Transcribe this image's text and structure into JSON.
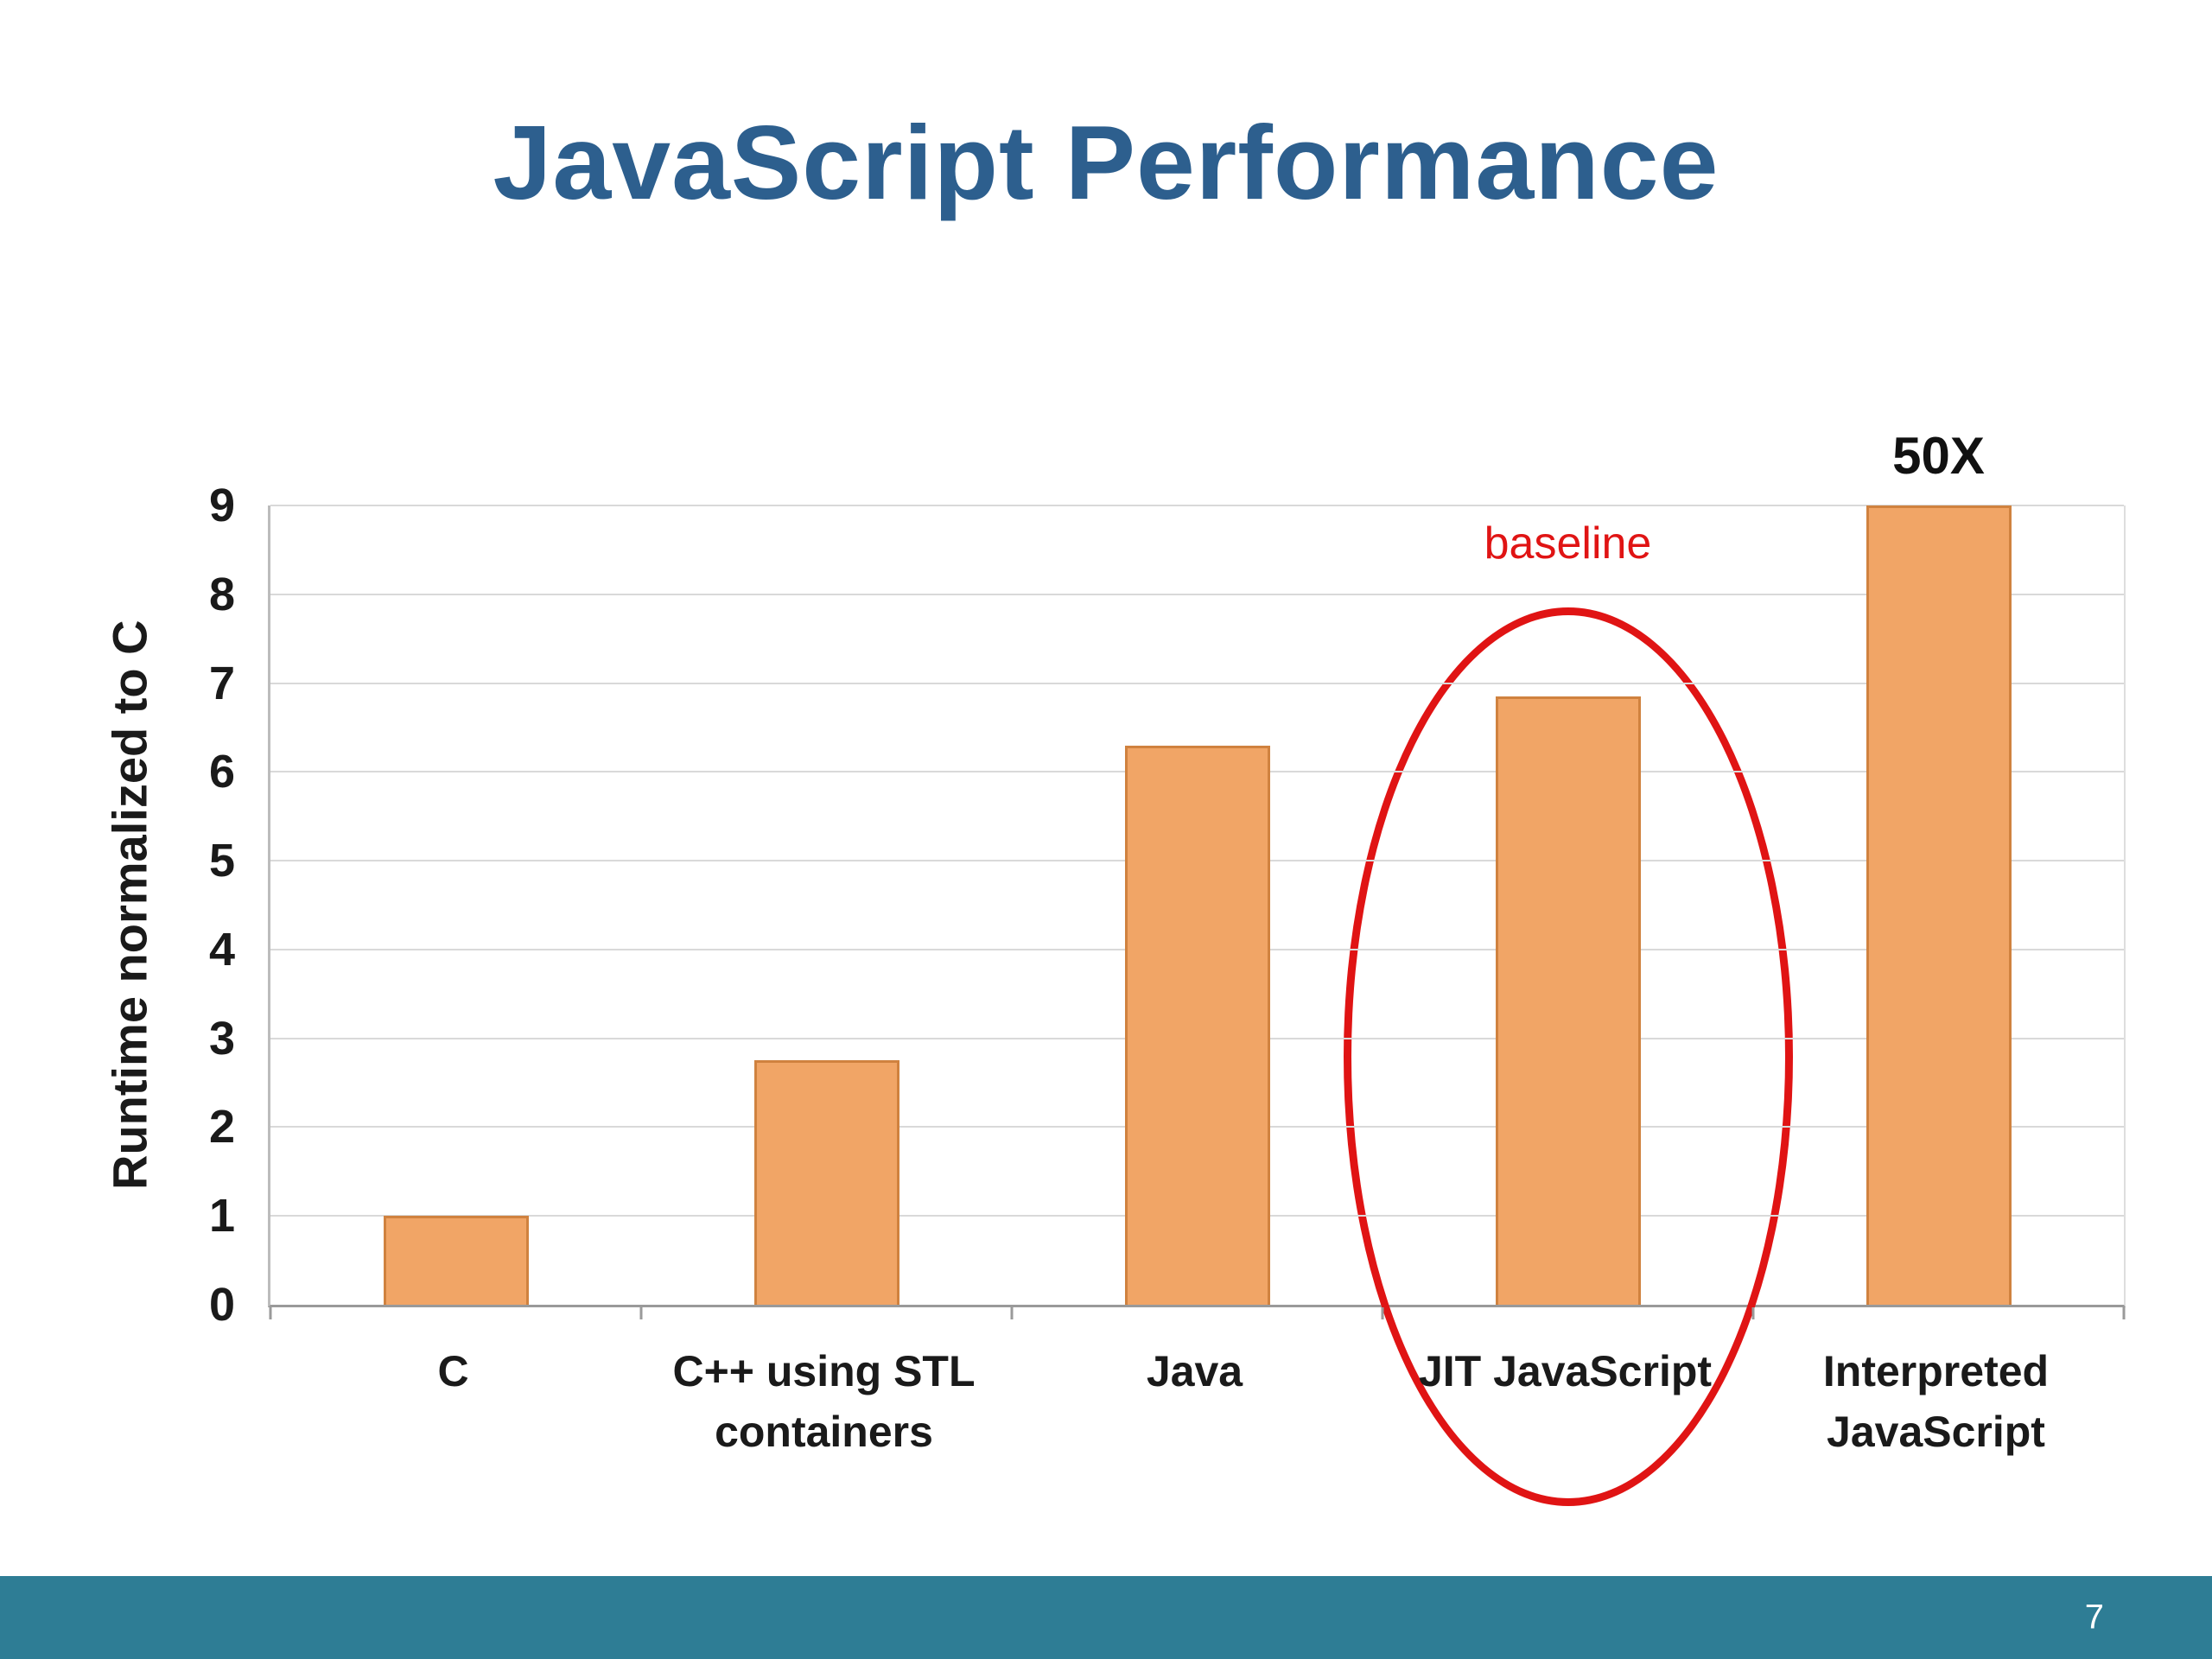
{
  "slide": {
    "title": "JavaScript Performance",
    "page_number": "7"
  },
  "colors": {
    "title_blue": "#2d5f8e",
    "bar_fill": "#f1a566",
    "bar_border": "#d0823f",
    "annotation_red": "#e01414",
    "footer_teal": "#2e7d95",
    "gridline": "#d9d9d9",
    "axis": "#9a9a9a"
  },
  "chart_data": {
    "type": "bar",
    "title": "",
    "xlabel": "",
    "ylabel": "Runtime normalized to C",
    "ylim": [
      0,
      9
    ],
    "ytick_step": 1,
    "grid": true,
    "categories": [
      "C",
      "C++ using STL\ncontainers",
      "Java",
      "JIT JavaScript",
      "Interpreted\nJavaScript"
    ],
    "values": [
      1,
      2.75,
      6.3,
      6.85,
      9
    ],
    "annotations": [
      {
        "text": "50X",
        "category_index": 4,
        "position": "above-clipped-bar",
        "color": "#111111"
      },
      {
        "text": "baseline",
        "category_index": 3,
        "position": "above-ellipse",
        "color": "#e01414"
      }
    ],
    "highlight_ellipse": {
      "category_index": 3,
      "color": "#e01414"
    },
    "note": "Interpreted JavaScript bar is clipped at y-axis max 9; its true value is 50X"
  }
}
